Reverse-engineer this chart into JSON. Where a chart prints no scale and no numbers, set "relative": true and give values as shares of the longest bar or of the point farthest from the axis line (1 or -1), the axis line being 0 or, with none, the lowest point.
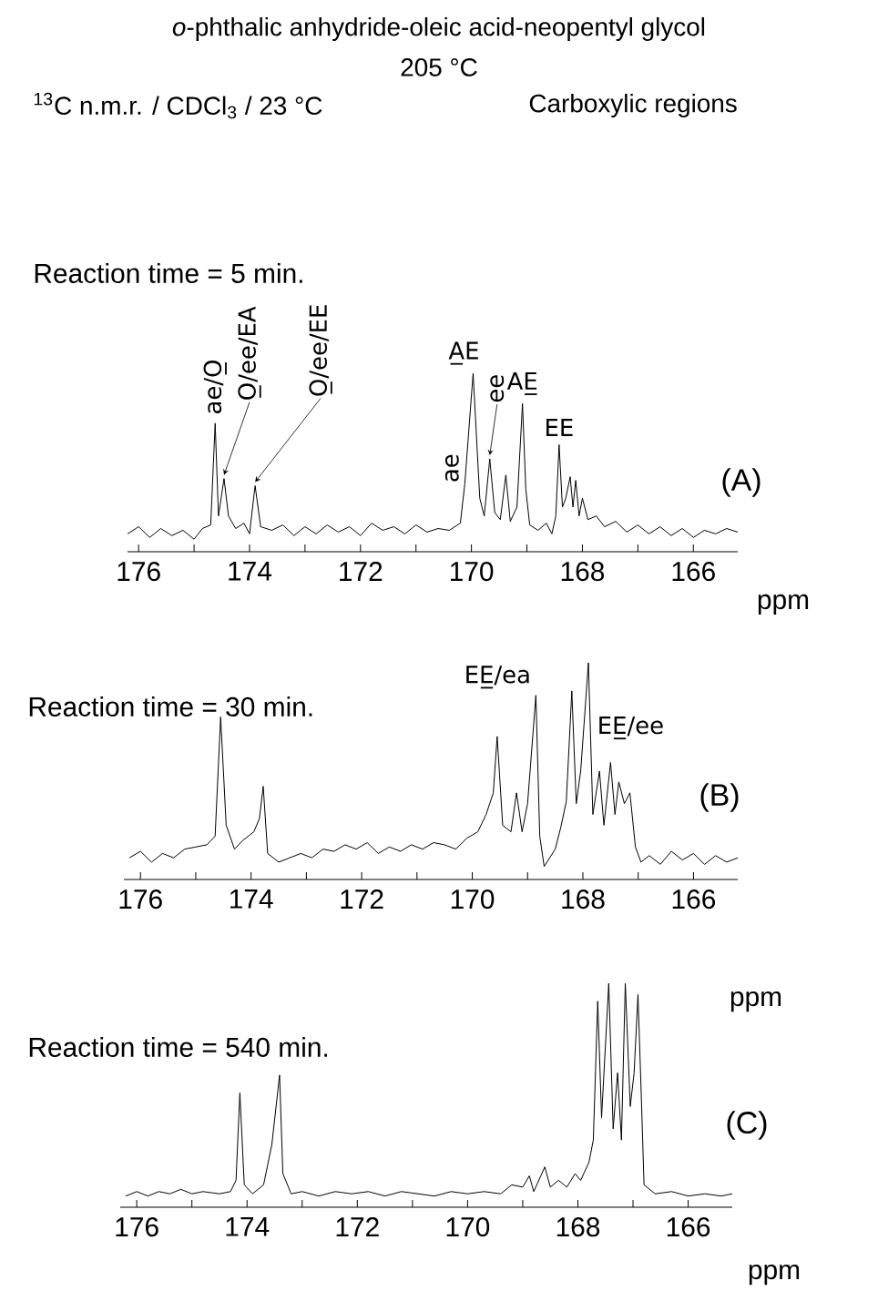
{
  "chart_data": [
    {
      "type": "line",
      "title": "Reaction time = 5 min.",
      "xlabel": "ppm",
      "relative": true,
      "color": "#000000",
      "xlim": [
        176.2,
        165.2
      ],
      "xticks": [
        176,
        {
          "value": 175,
          "label": null
        },
        174,
        {
          "value": 173,
          "label": null
        },
        172,
        {
          "value": 171,
          "label": null
        },
        170,
        {
          "value": 169,
          "label": null
        },
        168,
        {
          "value": 167,
          "label": null
        },
        166
      ],
      "x": [
        176.2,
        176.0,
        175.8,
        175.6,
        175.4,
        175.2,
        175.0,
        174.85,
        174.7,
        174.62,
        174.56,
        174.46,
        174.38,
        174.25,
        174.1,
        174.0,
        173.9,
        173.8,
        173.6,
        173.4,
        173.2,
        173.0,
        172.8,
        172.6,
        172.4,
        172.2,
        172.0,
        171.8,
        171.6,
        171.4,
        171.2,
        171.0,
        170.8,
        170.6,
        170.4,
        170.2,
        170.12,
        169.97,
        169.85,
        169.77,
        169.67,
        169.58,
        169.48,
        169.38,
        169.3,
        169.18,
        169.08,
        169.02,
        168.95,
        168.8,
        168.65,
        168.55,
        168.48,
        168.42,
        168.36,
        168.3,
        168.22,
        168.17,
        168.12,
        168.06,
        168.0,
        167.9,
        167.75,
        167.6,
        167.4,
        167.2,
        167.0,
        166.8,
        166.6,
        166.4,
        166.2,
        166.0,
        165.8,
        165.6,
        165.4,
        165.2
      ],
      "values": [
        0.1,
        0.14,
        0.08,
        0.13,
        0.09,
        0.12,
        0.07,
        0.13,
        0.15,
        0.72,
        0.2,
        0.41,
        0.2,
        0.13,
        0.16,
        0.1,
        0.37,
        0.14,
        0.12,
        0.15,
        0.09,
        0.14,
        0.1,
        0.15,
        0.11,
        0.14,
        0.09,
        0.16,
        0.12,
        0.14,
        0.1,
        0.15,
        0.11,
        0.13,
        0.12,
        0.16,
        0.38,
        1.0,
        0.3,
        0.2,
        0.52,
        0.22,
        0.18,
        0.43,
        0.17,
        0.25,
        0.83,
        0.35,
        0.15,
        0.12,
        0.16,
        0.1,
        0.2,
        0.6,
        0.25,
        0.3,
        0.42,
        0.25,
        0.4,
        0.2,
        0.3,
        0.18,
        0.2,
        0.14,
        0.17,
        0.11,
        0.15,
        0.1,
        0.14,
        0.09,
        0.13,
        0.08,
        0.12,
        0.1,
        0.13,
        0.11
      ],
      "annotations": [
        "*o*-phthalic anhydride-oleic acid-neopentyl glycol",
        "205 °C",
        "$^{13}$C n.m.r. / CDCl$_{3}$ / 23 °C",
        "Carboxylic regions",
        "(A)",
        {
          "text": "ae/O̲",
          "x": 174.62,
          "y": 0.72
        },
        {
          "text": "O̲/ee/EA",
          "x": 174.46,
          "y": 0.41
        },
        {
          "text": "O̲/ee/EE",
          "x": 173.9,
          "y": 0.37
        },
        {
          "text": "ae",
          "x": 170.12,
          "y": 0.38
        },
        {
          "text": "A̲E",
          "x": 169.97,
          "y": 1.0
        },
        {
          "text": "ee",
          "x": 169.67,
          "y": 0.52
        },
        {
          "text": "AE̲",
          "x": 169.08,
          "y": 0.83
        },
        {
          "text": "EE",
          "x": 168.42,
          "y": 0.6
        }
      ]
    },
    {
      "type": "line",
      "title": "Reaction time = 30 min.",
      "xlabel": "ppm",
      "relative": true,
      "color": "#000000",
      "xlim": [
        176.3,
        165.2
      ],
      "xticks": [
        176,
        {
          "value": 175,
          "label": null
        },
        174,
        {
          "value": 173,
          "label": null
        },
        172,
        {
          "value": 171,
          "label": null
        },
        170,
        {
          "value": 169,
          "label": null
        },
        168,
        {
          "value": 167,
          "label": null
        },
        166
      ],
      "x": [
        176.2,
        176.0,
        175.8,
        175.6,
        175.4,
        175.2,
        175.0,
        174.8,
        174.65,
        174.55,
        174.45,
        174.3,
        174.15,
        173.95,
        173.85,
        173.78,
        173.7,
        173.5,
        173.3,
        173.1,
        172.9,
        172.7,
        172.5,
        172.3,
        172.1,
        171.9,
        171.7,
        171.5,
        171.3,
        171.1,
        170.9,
        170.7,
        170.5,
        170.3,
        170.1,
        169.9,
        169.75,
        169.62,
        169.55,
        169.45,
        169.3,
        169.2,
        169.1,
        169.0,
        168.85,
        168.78,
        168.7,
        168.6,
        168.5,
        168.4,
        168.3,
        168.2,
        168.12,
        168.04,
        167.9,
        167.82,
        167.7,
        167.62,
        167.5,
        167.42,
        167.35,
        167.25,
        167.15,
        167.05,
        166.95,
        166.8,
        166.6,
        166.4,
        166.2,
        166.0,
        165.8,
        165.6,
        165.4,
        165.2
      ],
      "values": [
        0.1,
        0.13,
        0.08,
        0.12,
        0.1,
        0.14,
        0.15,
        0.16,
        0.2,
        0.75,
        0.25,
        0.14,
        0.18,
        0.22,
        0.28,
        0.43,
        0.12,
        0.08,
        0.1,
        0.12,
        0.1,
        0.14,
        0.13,
        0.16,
        0.14,
        0.17,
        0.12,
        0.15,
        0.13,
        0.16,
        0.14,
        0.17,
        0.16,
        0.14,
        0.19,
        0.22,
        0.3,
        0.4,
        0.66,
        0.25,
        0.22,
        0.4,
        0.22,
        0.35,
        0.85,
        0.2,
        0.06,
        0.1,
        0.14,
        0.24,
        0.36,
        0.87,
        0.35,
        0.5,
        1.0,
        0.3,
        0.5,
        0.25,
        0.54,
        0.3,
        0.45,
        0.35,
        0.4,
        0.15,
        0.08,
        0.11,
        0.07,
        0.13,
        0.09,
        0.12,
        0.07,
        0.11,
        0.08,
        0.1
      ],
      "annotations": [
        "(B)",
        {
          "text": "EE̲/ea",
          "x": 168.85,
          "y": 0.85
        },
        {
          "text": "EE̲/ee",
          "x": 167.5,
          "y": 0.54
        }
      ]
    },
    {
      "type": "line",
      "title": "Reaction time = 540 min.",
      "xlabel": "ppm",
      "relative": true,
      "color": "#000000",
      "xlim": [
        176.3,
        165.2
      ],
      "xticks": [
        176,
        {
          "value": 175,
          "label": null
        },
        174,
        {
          "value": 173,
          "label": null
        },
        172,
        {
          "value": 171,
          "label": null
        },
        170,
        {
          "value": 169,
          "label": null
        },
        168,
        {
          "value": 167,
          "label": null
        },
        166
      ],
      "x": [
        176.2,
        176.0,
        175.8,
        175.6,
        175.4,
        175.2,
        175.0,
        174.8,
        174.5,
        174.3,
        174.2,
        174.13,
        174.05,
        173.9,
        173.7,
        173.55,
        173.41,
        173.35,
        173.2,
        173.0,
        172.7,
        172.4,
        172.1,
        171.8,
        171.5,
        171.2,
        170.9,
        170.6,
        170.3,
        170.0,
        169.7,
        169.4,
        169.2,
        169.0,
        168.88,
        168.8,
        168.6,
        168.5,
        168.35,
        168.2,
        168.05,
        167.95,
        167.8,
        167.72,
        167.64,
        167.57,
        167.44,
        167.36,
        167.28,
        167.21,
        167.14,
        167.05,
        166.98,
        166.91,
        166.85,
        166.8,
        166.6,
        166.3,
        166.0,
        165.7,
        165.4,
        165.2
      ],
      "values": [
        0.05,
        0.07,
        0.05,
        0.07,
        0.06,
        0.08,
        0.06,
        0.07,
        0.06,
        0.07,
        0.12,
        0.51,
        0.1,
        0.06,
        0.1,
        0.28,
        0.59,
        0.15,
        0.06,
        0.07,
        0.05,
        0.07,
        0.06,
        0.07,
        0.05,
        0.07,
        0.06,
        0.05,
        0.07,
        0.06,
        0.07,
        0.06,
        0.1,
        0.09,
        0.14,
        0.07,
        0.18,
        0.09,
        0.12,
        0.09,
        0.15,
        0.12,
        0.2,
        0.3,
        0.92,
        0.4,
        1.0,
        0.35,
        0.6,
        0.3,
        1.0,
        0.45,
        0.6,
        0.95,
        0.5,
        0.1,
        0.06,
        0.07,
        0.05,
        0.06,
        0.05,
        0.06
      ],
      "annotations": [
        "(C)"
      ]
    }
  ]
}
